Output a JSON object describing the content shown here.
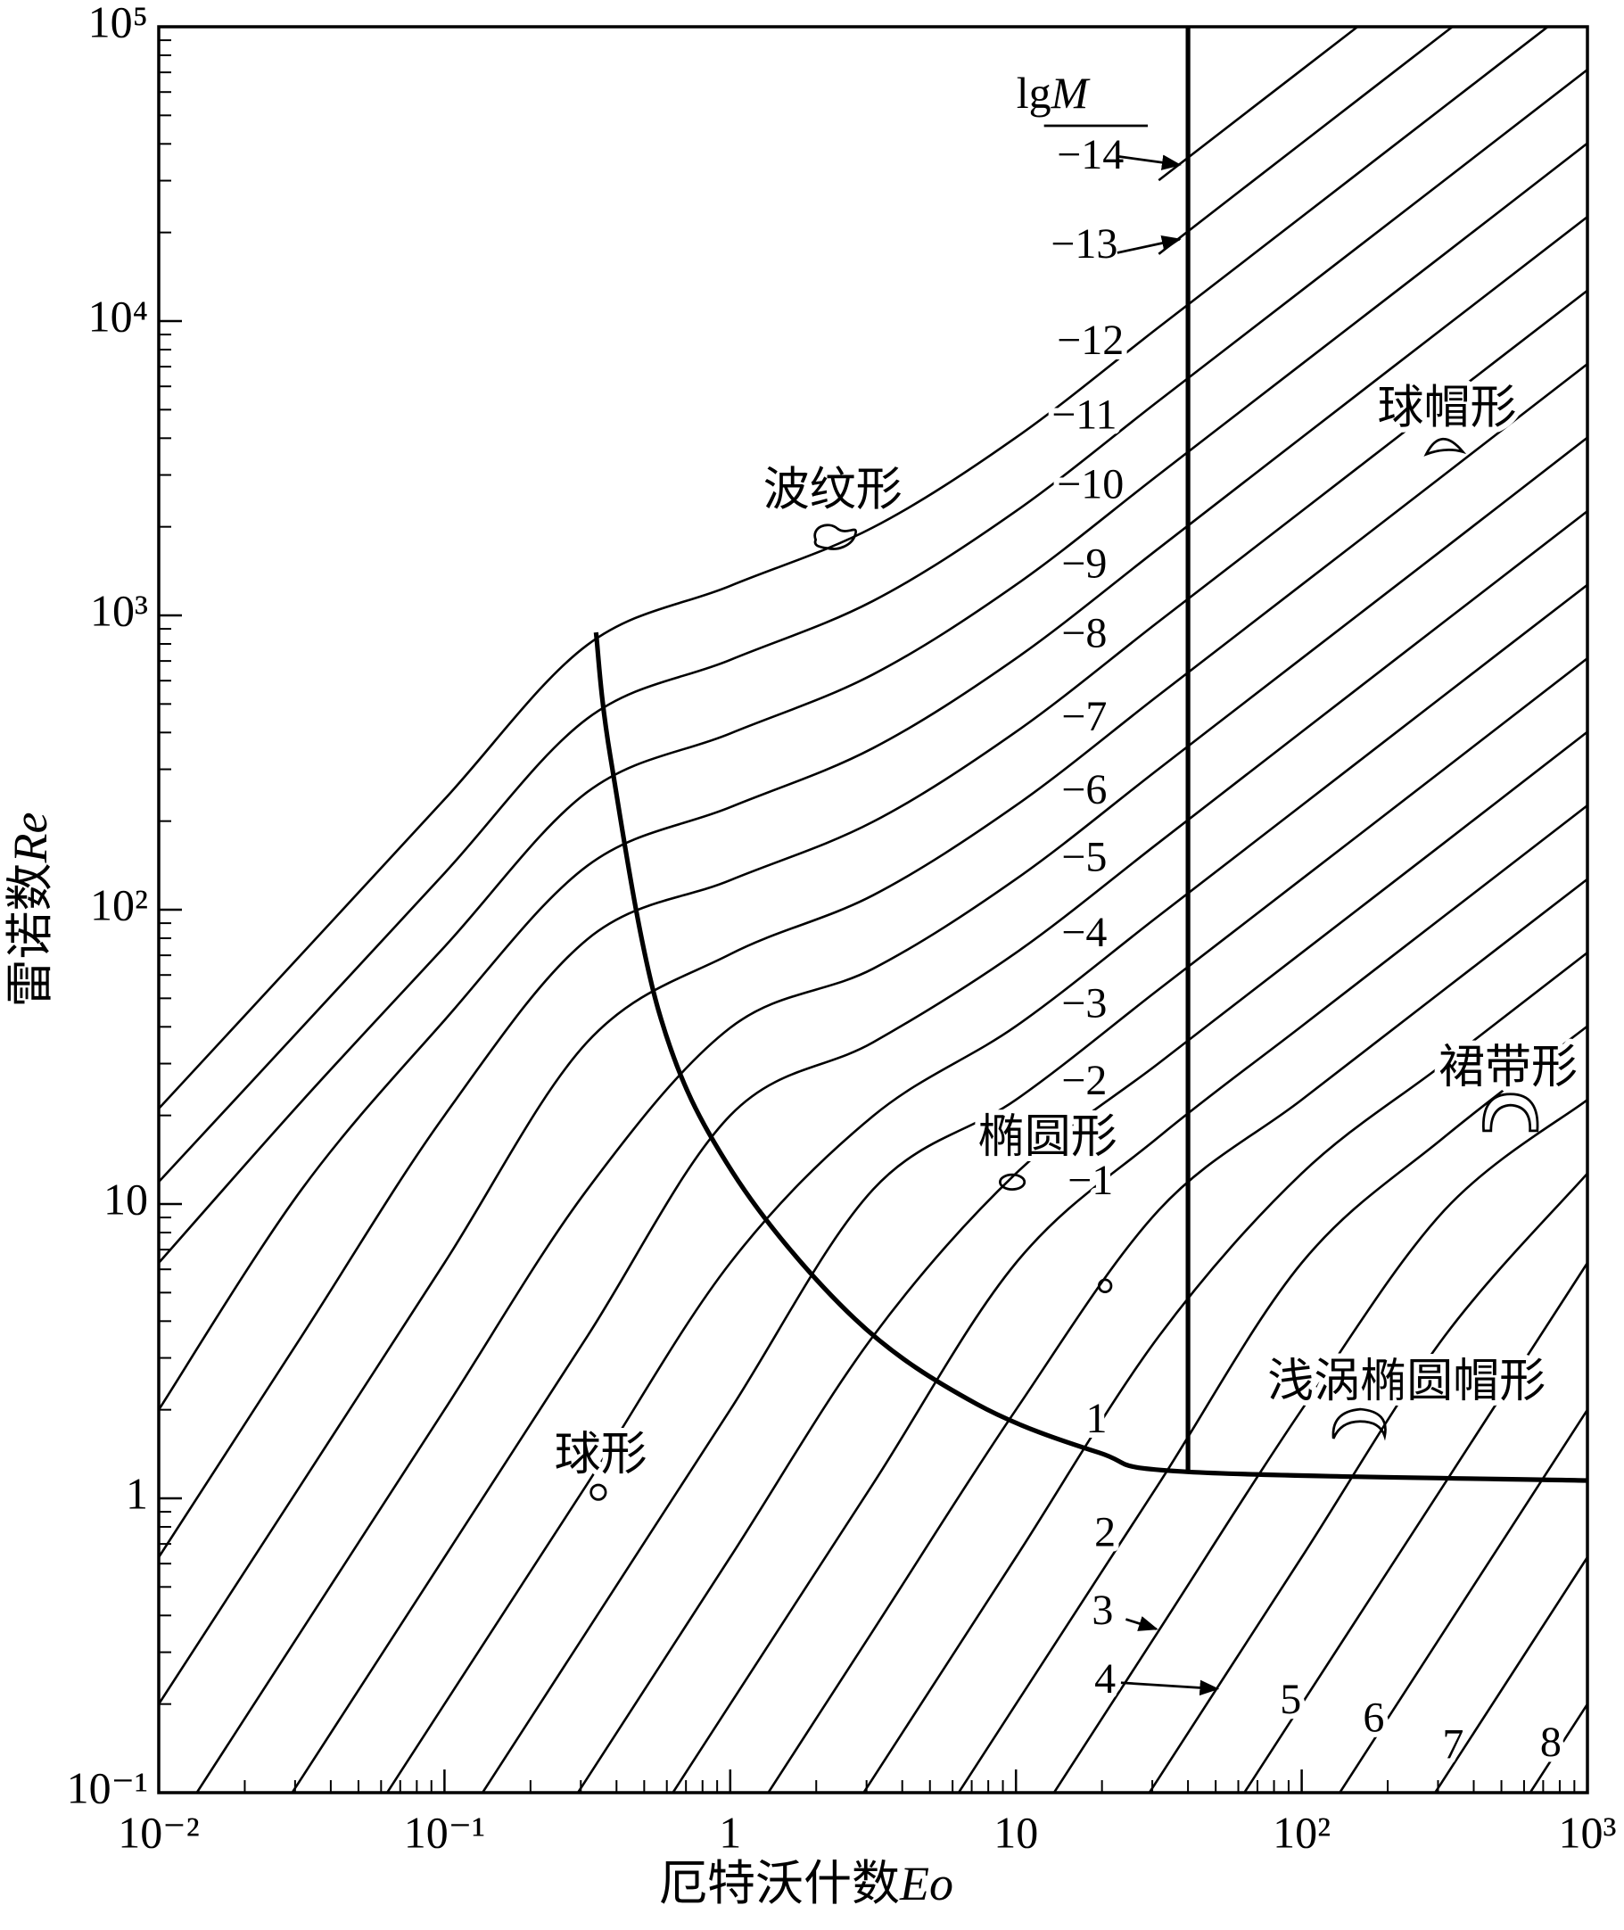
{
  "chart_data": {
    "type": "line",
    "xscale": "log",
    "yscale": "log",
    "xlabel": [
      "厄特沃什数",
      "Eo"
    ],
    "ylabel": [
      "雷诺数",
      "Re"
    ],
    "header": [
      "lg",
      "M"
    ],
    "color": "#000000",
    "xlim": [
      0.01,
      1000
    ],
    "ylim": [
      0.1,
      100000
    ],
    "xticks": [
      {
        "value": 0.01,
        "label": "10⁻²"
      },
      {
        "value": 0.1,
        "label": "10⁻¹"
      },
      1,
      10,
      {
        "value": 100,
        "label": "10²"
      },
      {
        "value": 1000,
        "label": "10³"
      }
    ],
    "yticks": [
      {
        "value": 0.1,
        "label": "10⁻¹"
      },
      1,
      10,
      {
        "value": 100,
        "label": "10²"
      },
      {
        "value": 1000,
        "label": "10³"
      },
      {
        "value": 10000,
        "label": "10⁴"
      },
      {
        "value": 100000,
        "label": "10⁵"
      }
    ],
    "xminor": [
      0.02,
      0.03,
      0.04,
      0.05,
      0.06,
      0.07,
      0.08,
      0.09,
      0.2,
      0.3,
      0.4,
      0.5,
      0.6,
      0.7,
      0.8,
      0.9,
      2,
      3,
      4,
      5,
      6,
      7,
      8,
      9,
      20,
      30,
      40,
      50,
      60,
      70,
      80,
      90,
      200,
      300,
      400,
      500,
      600,
      700,
      800,
      900
    ],
    "yminor": [
      0.2,
      0.3,
      0.4,
      0.5,
      0.6,
      0.7,
      0.8,
      0.9,
      2,
      3,
      4,
      5,
      6,
      7,
      8,
      9,
      20,
      30,
      40,
      50,
      60,
      70,
      80,
      90,
      200,
      300,
      400,
      500,
      600,
      700,
      800,
      900,
      2000,
      3000,
      4000,
      5000,
      6000,
      7000,
      8000,
      9000,
      20000,
      30000,
      40000,
      50000,
      60000,
      70000,
      80000,
      90000
    ],
    "x": [
      0.01,
      0.0316,
      0.1,
      0.316,
      1,
      3.16,
      10,
      31.6,
      100,
      316,
      1000
    ],
    "series": [
      {
        "name": "−14",
        "values": [
          null,
          null,
          null,
          null,
          null,
          null,
          null,
          30100,
          71400,
          169000,
          null
        ]
      },
      {
        "name": "−13",
        "values": [
          null,
          null,
          null,
          null,
          null,
          null,
          null,
          16900,
          40200,
          95300,
          226000
        ]
      },
      {
        "name": "−12",
        "values": [
          21.1,
          70.6,
          237,
          793,
          1260,
          1990,
          4020,
          9530,
          22600,
          53600,
          127000
        ]
      },
      {
        "name": "−11",
        "values": [
          11.9,
          39.7,
          133,
          446,
          706,
          1120,
          2260,
          5360,
          12700,
          30100,
          71500
        ]
      },
      {
        "name": "−10",
        "values": [
          6.31,
          22.3,
          74.8,
          251,
          397,
          630,
          1270,
          3010,
          7140,
          16900,
          40200
        ]
      },
      {
        "name": "−9",
        "values": [
          2.0,
          11.2,
          42.1,
          141,
          223,
          354,
          714,
          1690,
          4020,
          9530,
          22600
        ]
      },
      {
        "name": "−8",
        "values": [
          0.631,
          3.55,
          20.0,
          79.3,
          126,
          199,
          402,
          953,
          2260,
          5360,
          12700
        ]
      },
      {
        "name": "−7",
        "values": [
          0.2,
          1.12,
          6.31,
          35.5,
          70.6,
          112,
          226,
          536,
          1270,
          3010,
          7150
        ]
      },
      {
        "name": "−6",
        "values": [
          0.0631,
          0.355,
          2.0,
          11.2,
          39.7,
          63.0,
          127,
          301,
          714,
          1690,
          4020
        ]
      },
      {
        "name": "−5",
        "values": [
          0.02,
          0.112,
          0.631,
          3.55,
          20.0,
          35.4,
          71.4,
          169,
          402,
          953,
          2260
        ]
      },
      {
        "name": "−4",
        "values": [
          null,
          0.0355,
          0.2,
          1.12,
          6.31,
          19.9,
          40.2,
          95.3,
          226,
          536,
          1270
        ]
      },
      {
        "name": "−3",
        "values": [
          null,
          null,
          0.0631,
          0.355,
          2.0,
          11.2,
          22.6,
          53.6,
          127,
          301,
          715
        ]
      },
      {
        "name": "−2",
        "values": [
          null,
          null,
          0.02,
          0.112,
          0.631,
          3.55,
          12.7,
          30.1,
          71.4,
          169,
          402
        ]
      },
      {
        "name": "−1",
        "values": [
          null,
          null,
          null,
          0.0355,
          0.2,
          1.12,
          6.31,
          16.9,
          40.2,
          95.3,
          226
        ]
      },
      {
        "values": [
          null,
          null,
          null,
          null,
          0.0631,
          0.355,
          2.0,
          9.53,
          22.6,
          53.6,
          127
        ]
      },
      {
        "name": "1",
        "values": [
          null,
          null,
          null,
          null,
          0.02,
          0.112,
          0.631,
          3.55,
          12.7,
          30.1,
          71.5
        ]
      },
      {
        "name": "2",
        "values": [
          null,
          null,
          null,
          null,
          null,
          0.0355,
          0.2,
          1.12,
          6.31,
          16.9,
          40.2
        ]
      },
      {
        "name": "3",
        "values": [
          null,
          null,
          null,
          null,
          null,
          null,
          0.0631,
          0.355,
          2.0,
          9.53,
          22.6
        ]
      },
      {
        "name": "4",
        "values": [
          null,
          null,
          null,
          null,
          null,
          null,
          0.02,
          0.112,
          0.631,
          3.55,
          12.7
        ]
      },
      {
        "name": "5",
        "values": [
          null,
          null,
          null,
          null,
          null,
          null,
          null,
          0.0355,
          0.2,
          1.12,
          6.31
        ]
      },
      {
        "name": "6",
        "values": [
          null,
          null,
          null,
          null,
          null,
          null,
          null,
          null,
          0.0631,
          0.355,
          2.0
        ]
      },
      {
        "name": "7",
        "values": [
          null,
          null,
          null,
          null,
          null,
          null,
          null,
          null,
          0.02,
          0.112,
          0.631
        ]
      },
      {
        "name": "8",
        "values": [
          null,
          null,
          null,
          null,
          null,
          null,
          null,
          null,
          null,
          0.0355,
          0.2
        ]
      }
    ],
    "boundaries": [
      {
        "x": [
          0.339,
          0.381,
          0.565,
          1.02,
          2.73,
          7.3,
          19.5,
          40,
          1000
        ],
        "values": [
          875,
          330,
          44.4,
          12.8,
          4.07,
          2.09,
          1.43,
          1.23,
          1.15
        ]
      },
      {
        "x": [
          40,
          40
        ],
        "values": [
          1.23,
          100000
        ]
      }
    ],
    "regions": [
      "波纹形",
      "球帽形",
      "裙带形",
      "椭圆形",
      "浅涡椭圆帽形",
      "球形"
    ]
  }
}
